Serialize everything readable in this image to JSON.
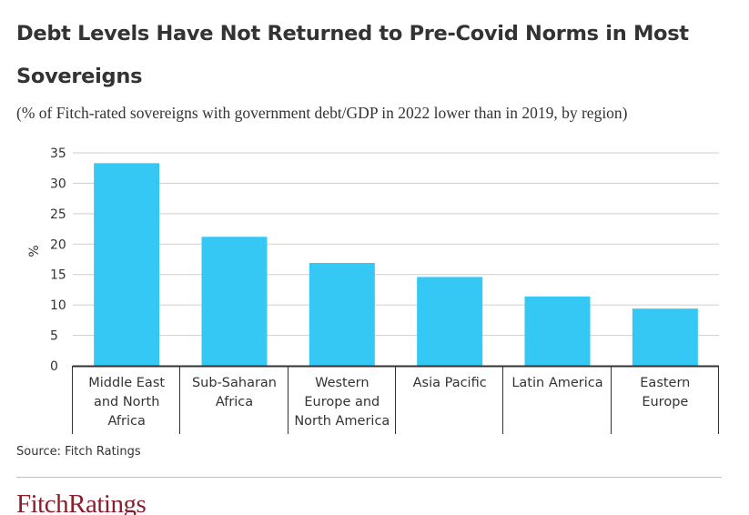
{
  "header": {
    "title": "Debt Levels Have Not Returned to Pre-Covid Norms in Most Sovereigns",
    "subtitle": "(% of Fitch-rated sovereigns with government debt/GDP in 2022 lower than in 2019, by region)"
  },
  "footer": {
    "source": "Source: Fitch Ratings",
    "logo_text": "FitchRatings"
  },
  "colors": {
    "bar": "#35c8f5",
    "grid": "#cfcfcf",
    "axis": "#333333",
    "logo": "#8b1e2d"
  },
  "chart_data": {
    "type": "bar",
    "title": "Debt Levels Have Not Returned to Pre-Covid Norms in Most Sovereigns",
    "subtitle": "(% of Fitch-rated sovereigns with government debt/GDP in 2022 lower than in 2019, by region)",
    "xlabel": "",
    "ylabel": "%",
    "ylim": [
      0,
      35
    ],
    "yticks": [
      0,
      5,
      10,
      15,
      20,
      25,
      30,
      35
    ],
    "grid": true,
    "categories": [
      [
        "Middle East",
        "and North",
        "Africa"
      ],
      [
        "Sub-Saharan",
        "Africa"
      ],
      [
        "Western",
        "Europe and",
        "North America"
      ],
      [
        "Asia Pacific"
      ],
      [
        "Latin America"
      ],
      [
        "Eastern",
        "Europe"
      ]
    ],
    "values": [
      33.3,
      21.2,
      16.9,
      14.6,
      11.4,
      9.4
    ]
  }
}
